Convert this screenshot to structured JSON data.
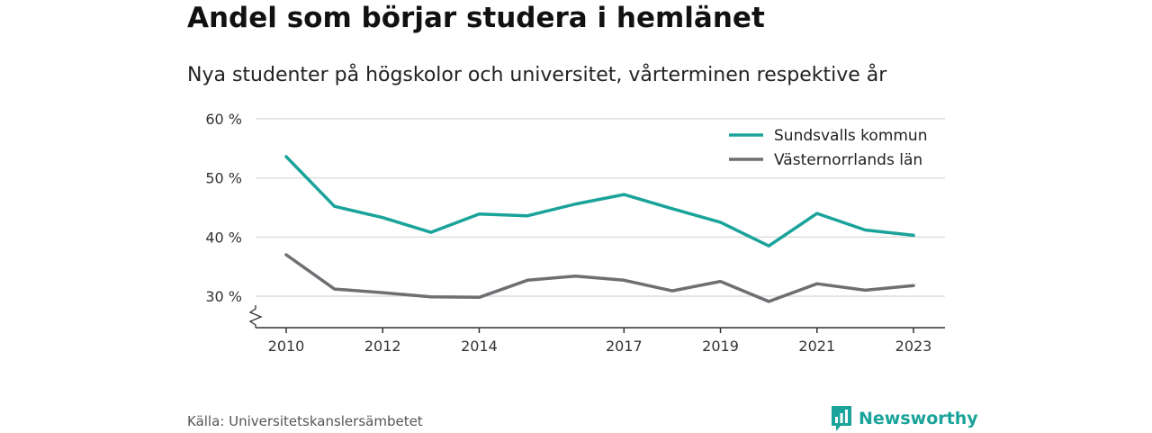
{
  "title": "Andel som börjar studera i hemlänet",
  "subtitle": "Nya studenter på högskolor och universitet, vårterminen respektive år",
  "source": "Källa: Universitetskanslersämbetet",
  "brand": {
    "name": "Newsworthy",
    "icon": "newsworthy-logo-icon",
    "color": "#1aa39a"
  },
  "chart_data": {
    "type": "line",
    "x": [
      2010,
      2011,
      2012,
      2013,
      2014,
      2015,
      2016,
      2017,
      2018,
      2019,
      2020,
      2021,
      2022,
      2023
    ],
    "x_tick_labels": [
      "2010",
      "2012",
      "2014",
      "2017",
      "2019",
      "2021",
      "2023"
    ],
    "x_tick_values": [
      2010,
      2012,
      2014,
      2017,
      2019,
      2021,
      2023
    ],
    "y_ticks": [
      30,
      40,
      50,
      60
    ],
    "y_tick_labels": [
      "30 %",
      "40 %",
      "50 %",
      "60 %"
    ],
    "ylim": [
      25,
      60
    ],
    "y_axis_break": true,
    "grid": true,
    "legend_position": "top-right",
    "series": [
      {
        "name": "Sundsvalls kommun",
        "color": "#1aa39a",
        "values": [
          53.6,
          45.2,
          43.3,
          40.8,
          43.9,
          43.6,
          45.6,
          47.2,
          44.8,
          42.5,
          38.5,
          44.0,
          41.2,
          40.3
        ]
      },
      {
        "name": "Västernorrlands län",
        "color": "#6f6e73",
        "values": [
          37.0,
          31.2,
          30.6,
          29.9,
          29.8,
          32.7,
          33.4,
          32.7,
          30.9,
          32.5,
          29.1,
          32.1,
          31.0,
          31.8
        ]
      }
    ]
  }
}
